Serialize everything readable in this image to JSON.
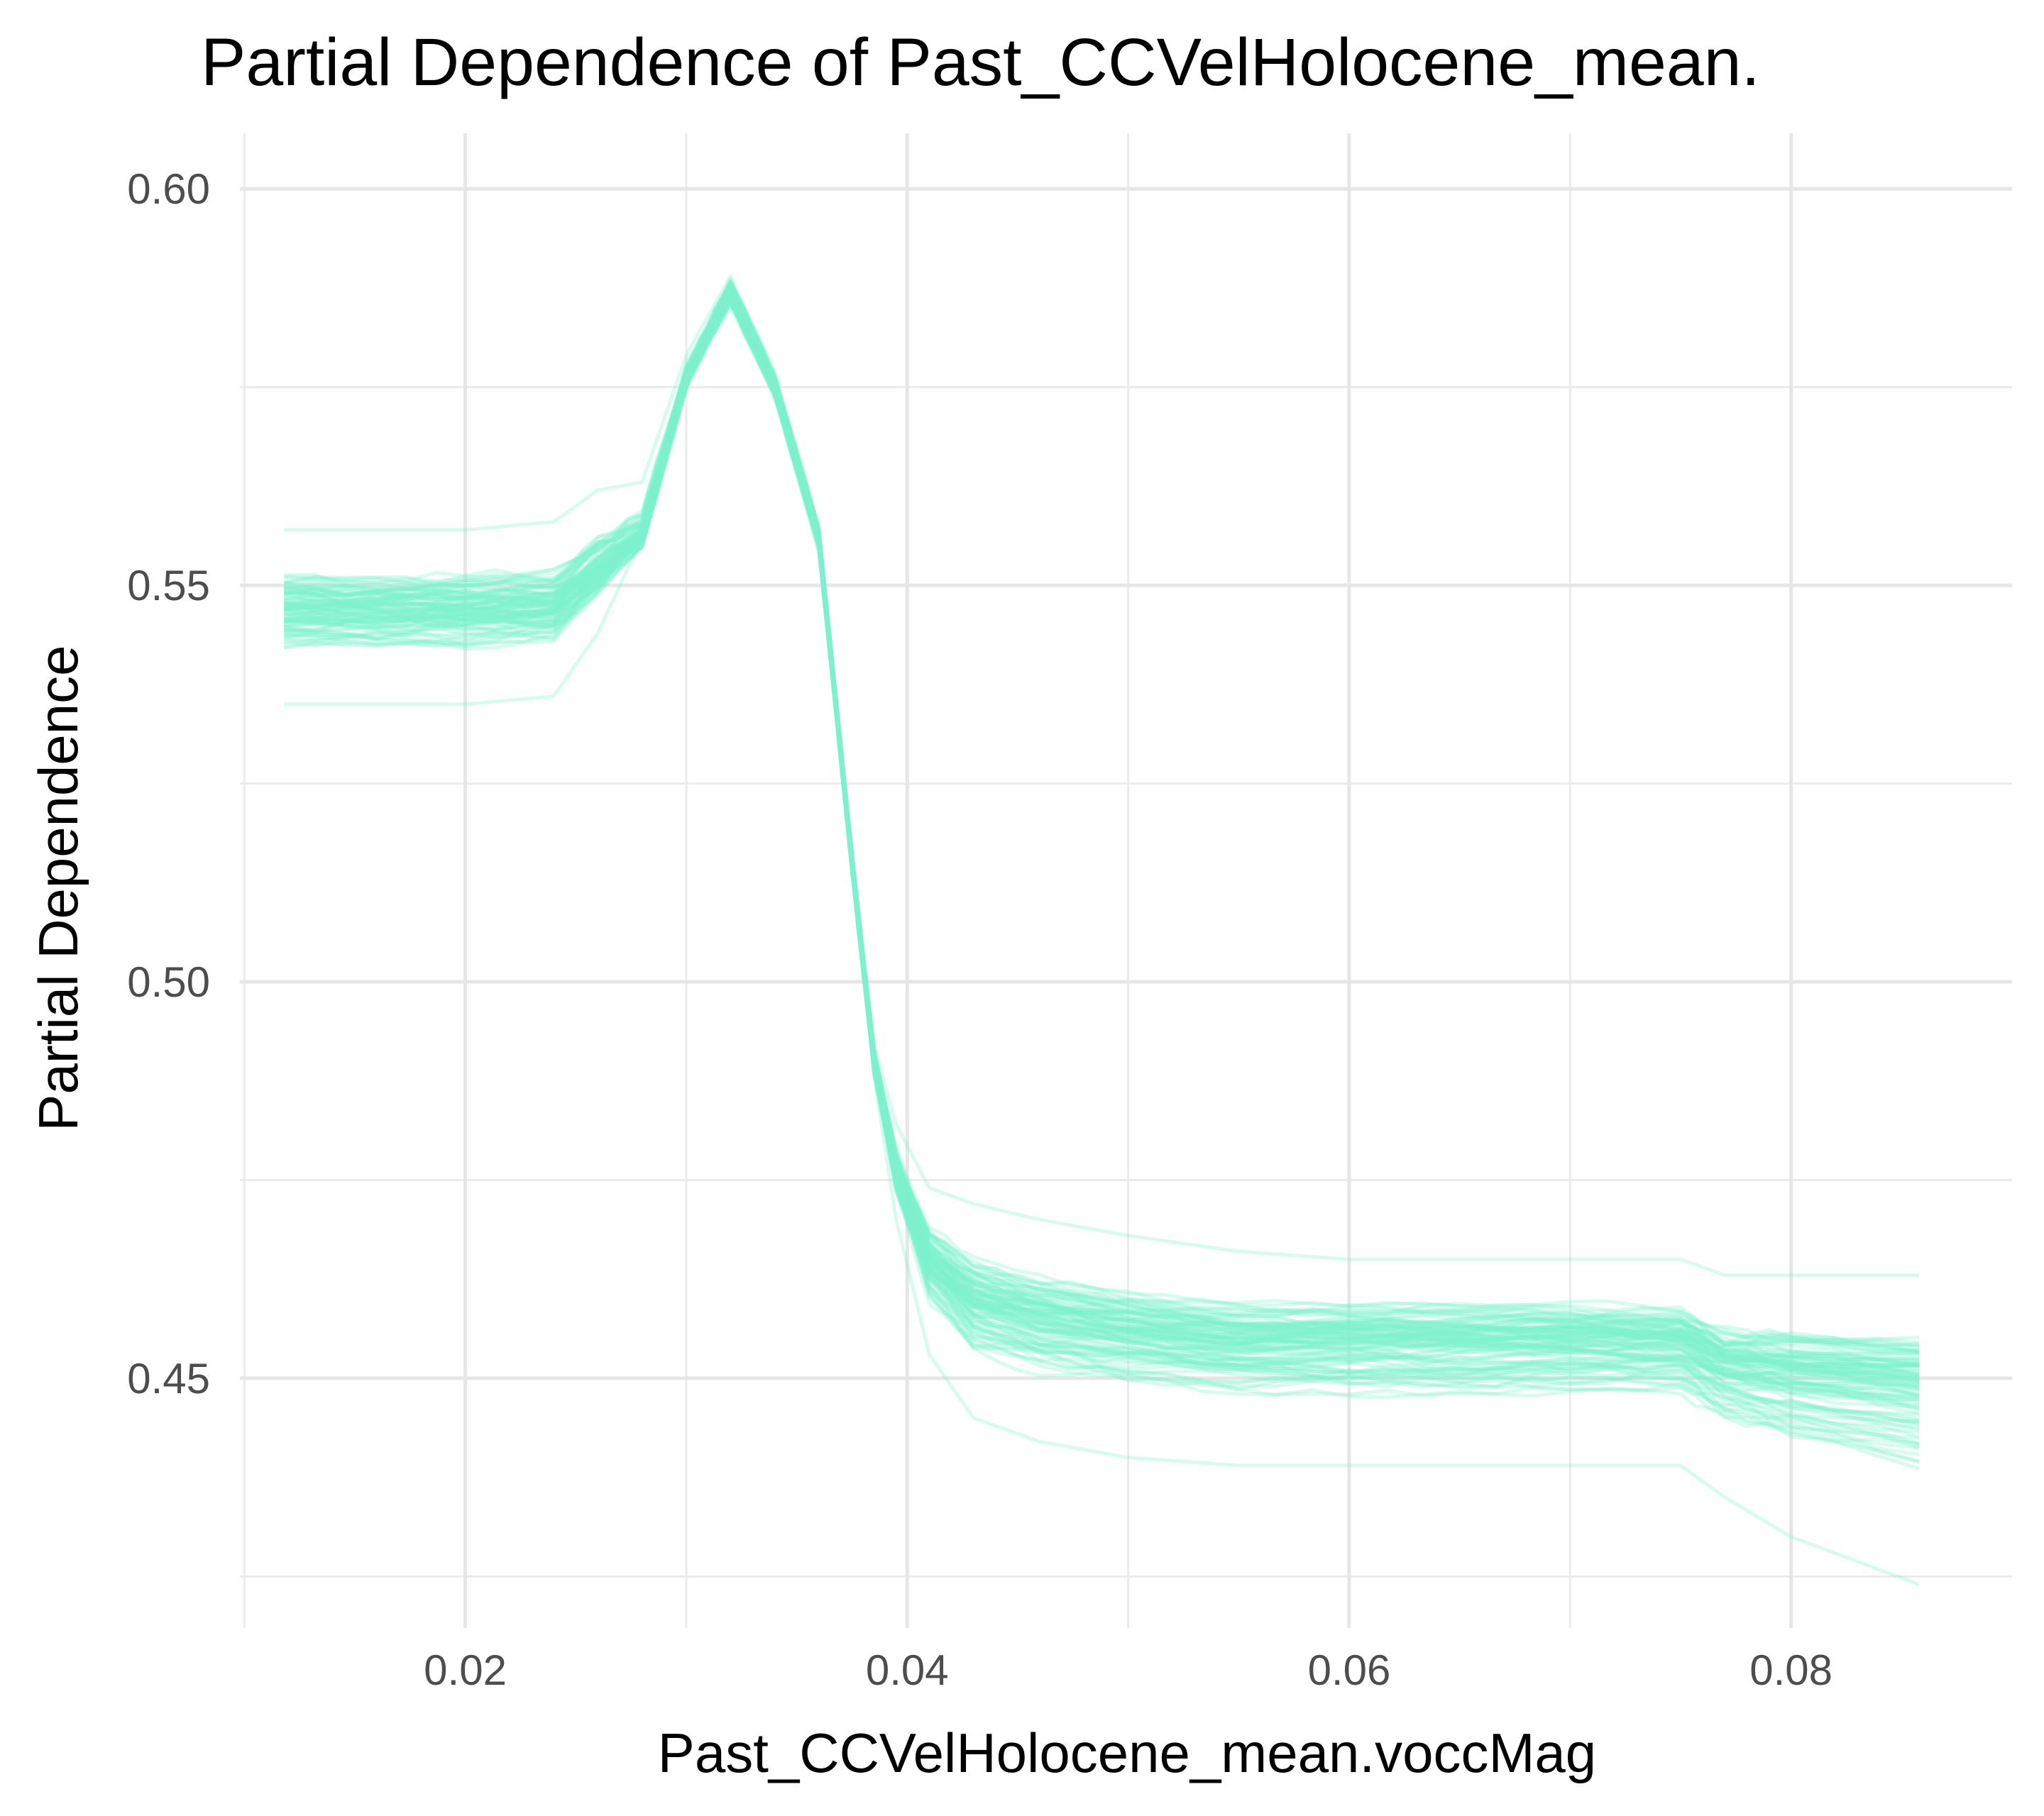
{
  "chart_data": {
    "type": "line",
    "title": "Partial Dependence of Past_CCVelHolocene_mean.",
    "xlabel": "Past_CCVelHolocene_mean.voccMag",
    "ylabel": "Partial Dependence",
    "xlim": [
      0.0098,
      0.09
    ],
    "ylim": [
      0.4185,
      0.607
    ],
    "x_ticks": [
      {
        "value": 0.02,
        "label": "0.02"
      },
      {
        "value": 0.04,
        "label": "0.04"
      },
      {
        "value": 0.06,
        "label": "0.06"
      },
      {
        "value": 0.08,
        "label": "0.08"
      }
    ],
    "x_minor_ticks": [
      0.01,
      0.03,
      0.05,
      0.07
    ],
    "y_ticks": [
      {
        "value": 0.45,
        "label": "0.45"
      },
      {
        "value": 0.5,
        "label": "0.50"
      },
      {
        "value": 0.55,
        "label": "0.55"
      },
      {
        "value": 0.6,
        "label": "0.60"
      }
    ],
    "y_minor_ticks": [
      0.425,
      0.475,
      0.525,
      0.575
    ],
    "grid": true,
    "legend": "none",
    "line_color": "#7FF2CC",
    "line_opacity": 0.3,
    "n_curves": 100,
    "x": [
      0.0118,
      0.016,
      0.02,
      0.024,
      0.026,
      0.028,
      0.03,
      0.032,
      0.034,
      0.036,
      0.0375,
      0.0385,
      0.0395,
      0.041,
      0.043,
      0.046,
      0.05,
      0.055,
      0.06,
      0.065,
      0.07,
      0.075,
      0.077,
      0.08,
      0.0858
    ],
    "series": [
      {
        "values": [
          0.547,
          0.547,
          0.547,
          0.5475,
          0.552,
          0.556,
          0.576,
          0.587,
          0.575,
          0.556,
          0.515,
          0.49,
          0.476,
          0.465,
          0.46,
          0.458,
          0.456,
          0.455,
          0.455,
          0.455,
          0.455,
          0.455,
          0.452,
          0.451,
          0.45
        ]
      },
      {
        "values": [
          0.535,
          0.535,
          0.535,
          0.536,
          0.544,
          0.556,
          0.576,
          0.585,
          0.574,
          0.554,
          0.515,
          0.492,
          0.482,
          0.474,
          0.472,
          0.47,
          0.468,
          0.466,
          0.465,
          0.465,
          0.465,
          0.465,
          0.463,
          0.463,
          0.463
        ]
      },
      {
        "values": [
          0.557,
          0.557,
          0.557,
          0.558,
          0.562,
          0.563,
          0.579,
          0.589,
          0.577,
          0.557,
          0.516,
          0.488,
          0.47,
          0.453,
          0.445,
          0.442,
          0.44,
          0.439,
          0.439,
          0.439,
          0.439,
          0.439,
          0.435,
          0.43,
          0.424
        ]
      }
    ]
  }
}
